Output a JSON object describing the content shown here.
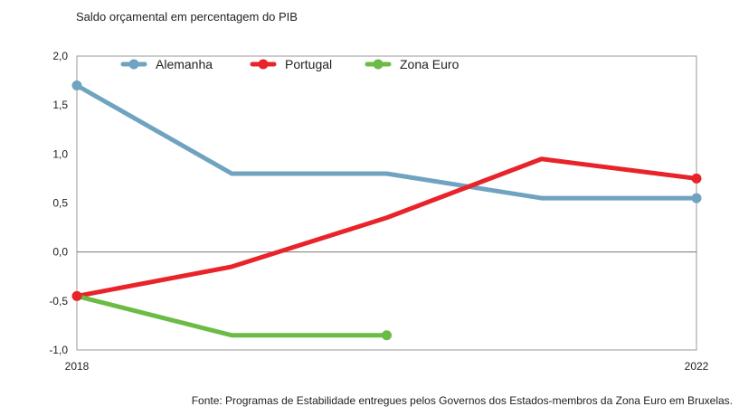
{
  "chart_data": {
    "type": "line",
    "title": "Saldo orçamental em percentagem do PIB",
    "source": "Fonte: Programas de Estabilidade entregues pelos Governos dos Estados-membros da Zona Euro em Bruxelas.",
    "x": [
      2018,
      2019,
      2020,
      2021,
      2022
    ],
    "x_tick_labels": [
      "2018",
      "",
      "",
      "",
      "2022"
    ],
    "y_ticks": [
      2.0,
      1.5,
      1.0,
      0.5,
      0.0,
      -0.5,
      -1.0
    ],
    "y_tick_labels": [
      "2,0",
      "1,5",
      "1,0",
      "0,5",
      "0,0",
      "-0,5",
      "-1,0"
    ],
    "ylim": [
      -1.0,
      2.0
    ],
    "legend_position": "top-left",
    "series": [
      {
        "name": "Alemanha",
        "color": "#6fa3bf",
        "values": [
          1.7,
          0.8,
          0.8,
          0.55,
          0.55
        ],
        "markers": [
          0,
          4
        ]
      },
      {
        "name": "Portugal",
        "color": "#e8232a",
        "values": [
          -0.45,
          -0.15,
          0.35,
          0.95,
          0.75
        ],
        "markers": [
          0,
          4
        ]
      },
      {
        "name": "Zona Euro",
        "color": "#6cbb45",
        "values": [
          -0.45,
          -0.85,
          -0.85,
          null,
          null
        ],
        "markers": [
          2
        ]
      }
    ]
  }
}
